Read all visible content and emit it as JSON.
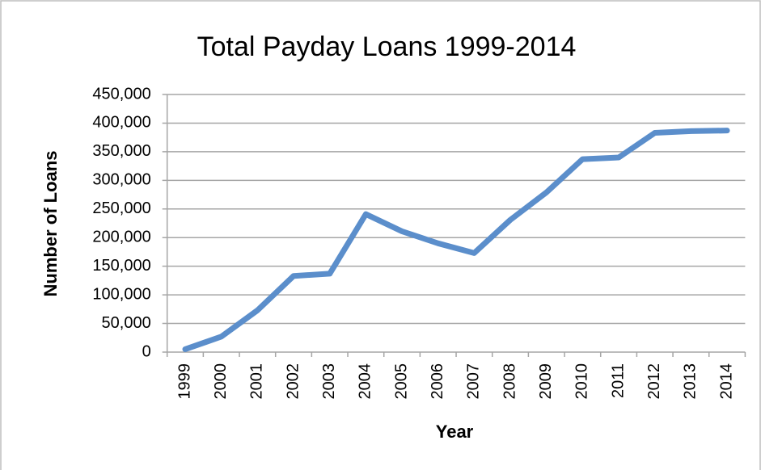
{
  "chart_data": {
    "type": "line",
    "title": "Total Payday Loans 1999-2014",
    "x_label": "Year",
    "y_label": "Number of Loans",
    "categories": [
      "1999",
      "2000",
      "2001",
      "2002",
      "2003",
      "2004",
      "2005",
      "2006",
      "2007",
      "2008",
      "2009",
      "2010",
      "2011",
      "2012",
      "2013",
      "2014"
    ],
    "series": [
      {
        "name": "Total Payday Loans",
        "color": "#5b8ecb",
        "values": [
          5000,
          27000,
          73000,
          133000,
          137000,
          241000,
          211000,
          190000,
          173000,
          231000,
          279000,
          337000,
          340000,
          383000,
          386000,
          387000
        ]
      }
    ],
    "ylim": [
      0,
      450000
    ],
    "yticks": [
      0,
      {
        "value": 50000,
        "label": "50,000"
      },
      {
        "value": 100000,
        "label": "100,000"
      },
      {
        "value": 150000,
        "label": "150,000"
      },
      {
        "value": 200000,
        "label": "200,000"
      },
      {
        "value": 250000,
        "label": "250,000"
      },
      {
        "value": 300000,
        "label": "300,000"
      },
      {
        "value": 350000,
        "label": "350,000"
      },
      {
        "value": 400000,
        "label": "400,000"
      },
      {
        "value": 450000,
        "label": "450,000"
      }
    ],
    "grid": true
  }
}
